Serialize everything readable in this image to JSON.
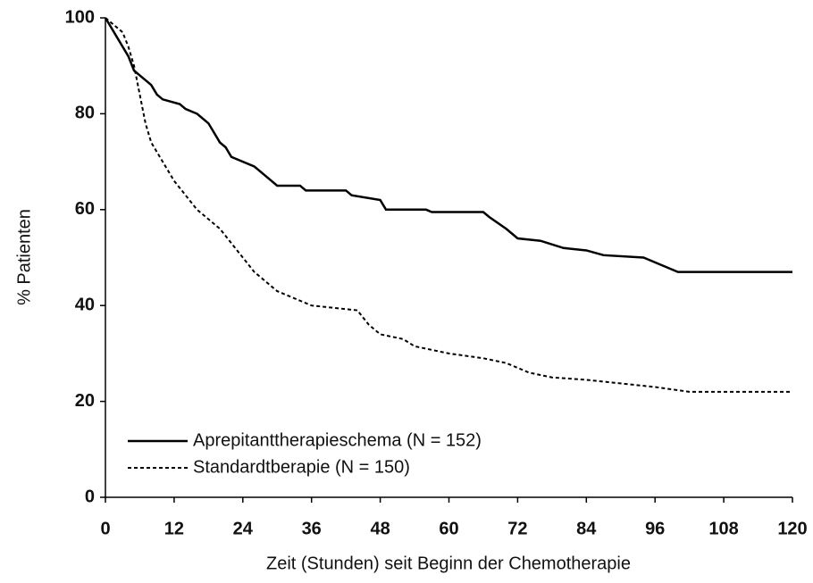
{
  "chart_data": {
    "type": "line",
    "xlabel": "Zeit (Stunden) seit Beginn der Chemotherapie",
    "ylabel": "% Patienten",
    "xlim": [
      0,
      120
    ],
    "xticks": [
      0,
      12,
      24,
      36,
      48,
      60,
      72,
      84,
      96,
      108,
      120
    ],
    "ylim": [
      0,
      100
    ],
    "yticks": [
      0,
      20,
      40,
      60,
      80,
      100
    ],
    "legend": "lower left",
    "series": [
      {
        "name": "Aprepitanttherapieschema (N = 152)",
        "color": "#000000",
        "line_style": "solid",
        "x": [
          0,
          1,
          2,
          3,
          4,
          5,
          6,
          8,
          9,
          10,
          13,
          14,
          16,
          18,
          19,
          20,
          21,
          22,
          24,
          26,
          28,
          29,
          30,
          34,
          35,
          42,
          43,
          48,
          49,
          56,
          57,
          66,
          67,
          70,
          72,
          76,
          80,
          84,
          87,
          94,
          96,
          98,
          100,
          120
        ],
        "values": [
          100,
          98,
          96,
          94,
          92,
          89,
          88,
          86,
          84,
          83,
          82,
          81,
          80,
          78,
          76,
          74,
          73,
          71,
          70,
          69,
          67,
          66,
          65,
          65,
          64,
          64,
          63,
          62,
          60,
          60,
          59.5,
          59.5,
          58.5,
          56,
          54,
          53.5,
          52,
          51.5,
          50.5,
          50,
          49,
          48,
          47,
          47
        ]
      },
      {
        "name": "Standardtberapie (N = 150)",
        "color": "#000000",
        "line_style": "dashed",
        "x": [
          0,
          3,
          4,
          5,
          6,
          7,
          8,
          10,
          12,
          14,
          16,
          18,
          20,
          22,
          24,
          26,
          28,
          30,
          32,
          36,
          40,
          44,
          46,
          48,
          52,
          54,
          60,
          66,
          70,
          72,
          74,
          78,
          84,
          92,
          96,
          102,
          120
        ],
        "values": [
          100,
          97,
          94,
          90,
          84,
          78,
          74,
          70,
          66,
          63,
          60,
          58,
          56,
          53,
          50,
          47,
          45,
          43,
          42,
          40,
          39.5,
          39,
          36,
          34,
          33,
          31.5,
          30,
          29,
          28,
          27,
          26,
          25,
          24.5,
          23.5,
          23,
          22,
          22
        ]
      }
    ]
  }
}
